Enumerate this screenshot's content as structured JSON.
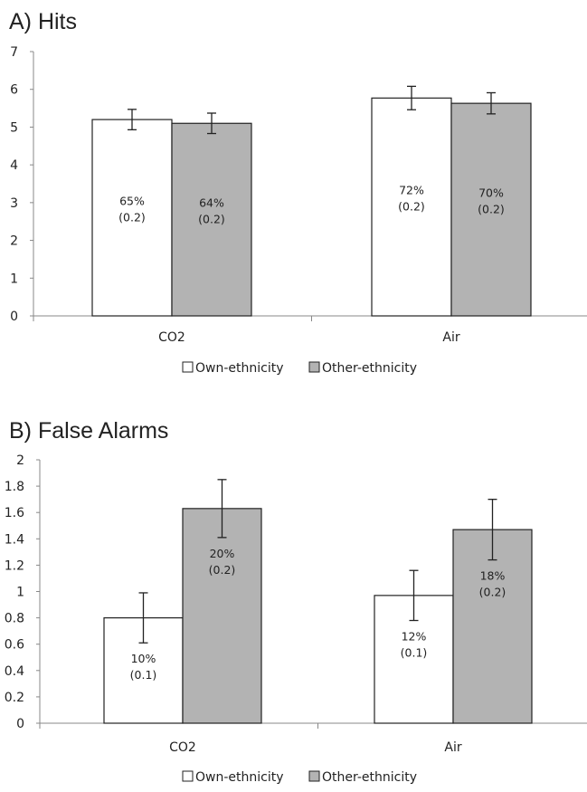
{
  "chart_data": [
    {
      "type": "bar",
      "title": "A) Hits",
      "categories": [
        "CO2",
        "Air"
      ],
      "ylim": [
        0,
        7
      ],
      "yticks": [
        0,
        1,
        2,
        3,
        4,
        5,
        6,
        7
      ],
      "series": [
        {
          "name": "Own-ethnicity",
          "color": "#ffffff",
          "values": [
            5.2,
            5.77
          ],
          "errors": [
            0.27,
            0.31
          ],
          "labels": [
            [
              "65%",
              "(0.2)"
            ],
            [
              "72%",
              "(0.2)"
            ]
          ]
        },
        {
          "name": "Other-ethnicity",
          "color": "#b3b3b3",
          "values": [
            5.1,
            5.63
          ],
          "errors": [
            0.27,
            0.28
          ],
          "labels": [
            [
              "64%",
              "(0.2)"
            ],
            [
              "70%",
              "(0.2)"
            ]
          ]
        }
      ],
      "legend_position": "bottom"
    },
    {
      "type": "bar",
      "title": "B) False Alarms",
      "categories": [
        "CO2",
        "Air"
      ],
      "ylim": [
        0,
        2
      ],
      "yticks": [
        0,
        0.2,
        0.4,
        0.6,
        0.8,
        1,
        1.2,
        1.4,
        1.6,
        1.8,
        2
      ],
      "series": [
        {
          "name": "Own-ethnicity",
          "color": "#ffffff",
          "values": [
            0.8,
            0.97
          ],
          "errors": [
            0.19,
            0.19
          ],
          "labels": [
            [
              "10%",
              "(0.1)"
            ],
            [
              "12%",
              "(0.1)"
            ]
          ]
        },
        {
          "name": "Other-ethnicity",
          "color": "#b3b3b3",
          "values": [
            1.63,
            1.47
          ],
          "errors": [
            0.22,
            0.23
          ],
          "labels": [
            [
              "20%",
              "(0.2)"
            ],
            [
              "18%",
              "(0.2)"
            ]
          ]
        }
      ],
      "legend_position": "bottom"
    }
  ]
}
